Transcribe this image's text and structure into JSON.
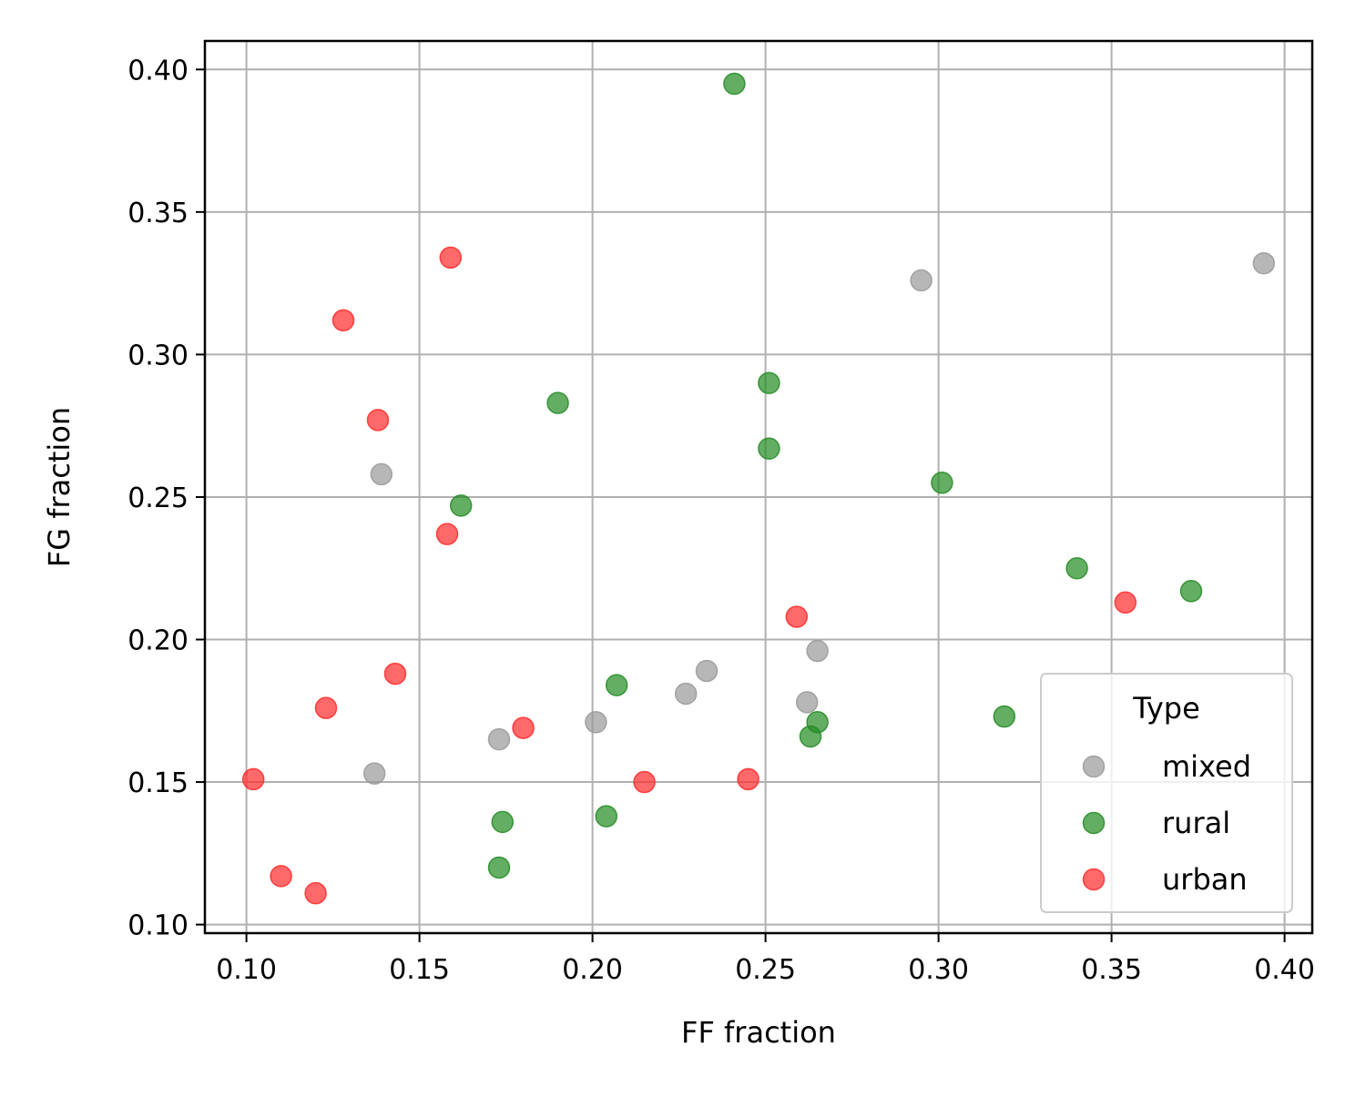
{
  "chart_data": {
    "type": "scatter",
    "xlabel": "FF fraction",
    "ylabel": "FG fraction",
    "xlim": [
      0.088,
      0.408
    ],
    "ylim": [
      0.097,
      0.41
    ],
    "xticks": [
      0.1,
      0.15,
      0.2,
      0.25,
      0.3,
      0.35,
      0.4
    ],
    "yticks": [
      0.1,
      0.15,
      0.2,
      0.25,
      0.3,
      0.35,
      0.4
    ],
    "tick_format_decimals": 2,
    "grid": true,
    "legend": {
      "title": "Type",
      "placement": "lower right"
    },
    "series": [
      {
        "name": "mixed",
        "color": "#999999",
        "points": [
          [
            0.137,
            0.153
          ],
          [
            0.139,
            0.258
          ],
          [
            0.173,
            0.165
          ],
          [
            0.201,
            0.171
          ],
          [
            0.227,
            0.181
          ],
          [
            0.233,
            0.189
          ],
          [
            0.262,
            0.178
          ],
          [
            0.265,
            0.196
          ],
          [
            0.295,
            0.326
          ],
          [
            0.394,
            0.332
          ]
        ]
      },
      {
        "name": "rural",
        "color": "#228B22",
        "points": [
          [
            0.162,
            0.247
          ],
          [
            0.173,
            0.12
          ],
          [
            0.174,
            0.136
          ],
          [
            0.19,
            0.283
          ],
          [
            0.204,
            0.138
          ],
          [
            0.207,
            0.184
          ],
          [
            0.241,
            0.395
          ],
          [
            0.251,
            0.29
          ],
          [
            0.251,
            0.267
          ],
          [
            0.263,
            0.166
          ],
          [
            0.265,
            0.171
          ],
          [
            0.301,
            0.255
          ],
          [
            0.319,
            0.173
          ],
          [
            0.34,
            0.225
          ],
          [
            0.373,
            0.217
          ]
        ]
      },
      {
        "name": "urban",
        "color": "#FF2A2A",
        "points": [
          [
            0.102,
            0.151
          ],
          [
            0.11,
            0.117
          ],
          [
            0.12,
            0.111
          ],
          [
            0.123,
            0.176
          ],
          [
            0.128,
            0.312
          ],
          [
            0.138,
            0.277
          ],
          [
            0.143,
            0.188
          ],
          [
            0.158,
            0.237
          ],
          [
            0.159,
            0.334
          ],
          [
            0.18,
            0.169
          ],
          [
            0.215,
            0.15
          ],
          [
            0.245,
            0.151
          ],
          [
            0.259,
            0.208
          ],
          [
            0.354,
            0.213
          ]
        ]
      }
    ]
  }
}
